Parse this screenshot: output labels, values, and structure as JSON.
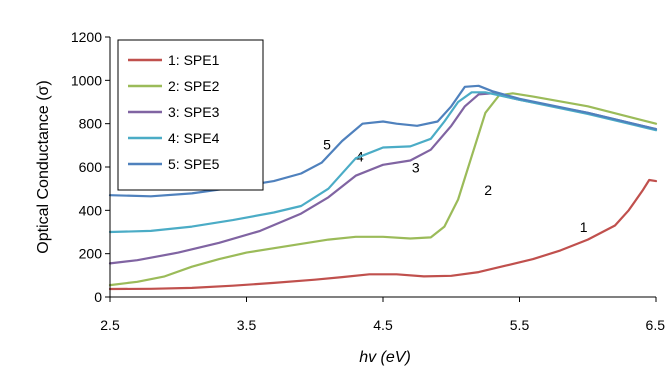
{
  "chart_data": {
    "type": "line",
    "title": "",
    "xlabel": "hv (eV)",
    "ylabel": "Optical Conductance (σ)",
    "xlim": [
      2.5,
      6.5
    ],
    "ylim": [
      0,
      1200
    ],
    "xticks": [
      "2.5",
      "3.5",
      "4.5",
      "5.5",
      "6.5"
    ],
    "yticks": [
      "0",
      "200",
      "400",
      "600",
      "800",
      "1000",
      "1200"
    ],
    "xtick_values": [
      2.5,
      3.5,
      4.5,
      5.5,
      6.5
    ],
    "ytick_values": [
      0,
      200,
      400,
      600,
      800,
      1000,
      1200
    ],
    "grid": false,
    "legend_position": "top-left",
    "series": [
      {
        "name": "1: SPE1",
        "color": "#c0504d",
        "annotation": "1",
        "annotation_at": [
          5.97,
          300
        ],
        "x": [
          2.5,
          2.8,
          3.1,
          3.4,
          3.7,
          4.0,
          4.2,
          4.4,
          4.6,
          4.8,
          5.0,
          5.2,
          5.4,
          5.6,
          5.8,
          6.0,
          6.2,
          6.3,
          6.4,
          6.45,
          6.5
        ],
        "y": [
          37,
          38,
          42,
          52,
          65,
          80,
          92,
          105,
          105,
          95,
          98,
          115,
          145,
          175,
          215,
          265,
          330,
          400,
          490,
          540,
          535
        ]
      },
      {
        "name": "2: SPE2",
        "color": "#9bbb59",
        "annotation": "2",
        "annotation_at": [
          5.27,
          470
        ],
        "x": [
          2.5,
          2.7,
          2.9,
          3.1,
          3.3,
          3.5,
          3.8,
          4.1,
          4.3,
          4.5,
          4.7,
          4.85,
          4.95,
          5.05,
          5.15,
          5.25,
          5.35,
          5.45,
          5.6,
          6.0,
          6.5
        ],
        "y": [
          55,
          70,
          95,
          140,
          175,
          205,
          235,
          265,
          278,
          278,
          270,
          275,
          325,
          450,
          650,
          850,
          930,
          940,
          925,
          880,
          800
        ]
      },
      {
        "name": "3: SPE3",
        "color": "#8064a2",
        "annotation": "3",
        "annotation_at": [
          4.74,
          575
        ],
        "x": [
          2.5,
          2.7,
          3.0,
          3.3,
          3.6,
          3.9,
          4.1,
          4.3,
          4.5,
          4.7,
          4.85,
          5.0,
          5.1,
          5.2,
          5.3,
          5.5,
          6.0,
          6.5
        ],
        "y": [
          155,
          170,
          205,
          250,
          305,
          385,
          460,
          560,
          610,
          630,
          680,
          790,
          880,
          935,
          940,
          910,
          850,
          775
        ]
      },
      {
        "name": "4: SPE4",
        "color": "#4bacc6",
        "annotation": "4",
        "annotation_at": [
          4.33,
          625
        ],
        "x": [
          2.5,
          2.8,
          3.1,
          3.4,
          3.7,
          3.9,
          4.1,
          4.3,
          4.5,
          4.7,
          4.85,
          4.95,
          5.05,
          5.15,
          5.25,
          5.5,
          6.0,
          6.5
        ],
        "y": [
          300,
          305,
          325,
          355,
          390,
          420,
          500,
          640,
          690,
          695,
          730,
          810,
          900,
          945,
          945,
          910,
          845,
          770
        ]
      },
      {
        "name": "5: SPE5",
        "color": "#4f81bd",
        "annotation": "5",
        "annotation_at": [
          4.09,
          680
        ],
        "x": [
          2.5,
          2.8,
          3.1,
          3.4,
          3.7,
          3.9,
          4.05,
          4.2,
          4.35,
          4.5,
          4.6,
          4.75,
          4.9,
          5.0,
          5.1,
          5.2,
          5.3,
          5.5,
          6.0,
          6.5
        ],
        "y": [
          470,
          465,
          478,
          505,
          535,
          570,
          620,
          720,
          800,
          810,
          800,
          790,
          810,
          880,
          970,
          975,
          950,
          915,
          850,
          775
        ]
      }
    ]
  }
}
